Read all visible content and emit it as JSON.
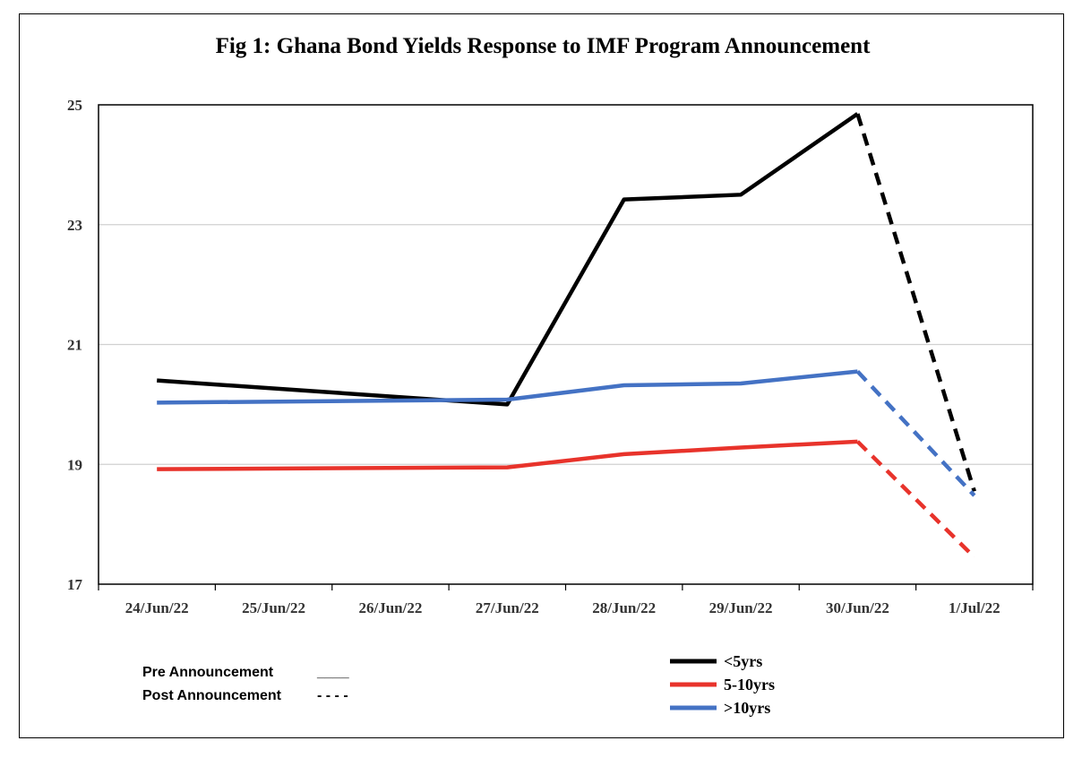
{
  "chart_data": {
    "type": "line",
    "title": "Fig 1: Ghana Bond Yields Response to IMF Program Announcement",
    "xlabel": "",
    "ylabel": "",
    "categories": [
      "24/Jun/22",
      "25/Jun/22",
      "26/Jun/22",
      "27/Jun/22",
      "28/Jun/22",
      "29/Jun/22",
      "30/Jun/22",
      "1/Jul/22"
    ],
    "ylim": [
      17,
      25
    ],
    "yticks": [
      17,
      19,
      21,
      23,
      25
    ],
    "grid": "horizontal",
    "pre_announcement_last_index": 6,
    "series": [
      {
        "name": "<5yrs",
        "color": "#000000",
        "values": [
          20.4,
          null,
          null,
          20.0,
          23.42,
          23.5,
          24.85,
          18.55
        ]
      },
      {
        "name": "5-10yrs",
        "color": "#e8332b",
        "values": [
          18.92,
          null,
          null,
          18.95,
          19.17,
          19.28,
          19.38,
          17.45
        ]
      },
      {
        "name": ">10yrs",
        "color": "#4472c4",
        "values": [
          20.03,
          null,
          null,
          20.08,
          20.32,
          20.35,
          20.55,
          18.48
        ]
      }
    ],
    "legend_position": "bottom-right"
  },
  "notes": {
    "pre_label": "Pre Announcement",
    "pre_marker": "____",
    "post_label": "Post Announcement",
    "post_marker": "- - - -"
  }
}
